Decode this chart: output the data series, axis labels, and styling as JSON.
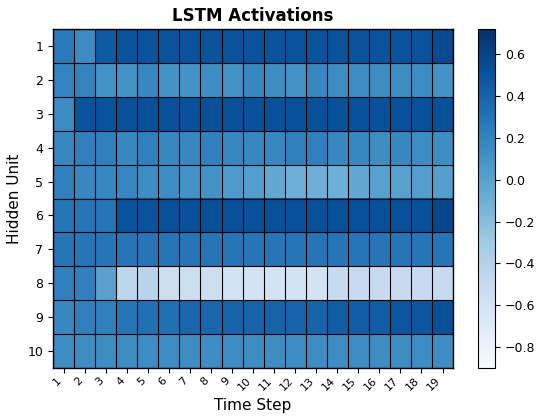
{
  "title": "LSTM Activations",
  "xlabel": "Time Step",
  "ylabel": "Hidden Unit",
  "n_rows": 10,
  "n_cols": 19,
  "vmin": -0.9,
  "vmax": 0.72,
  "colormap": "Blues",
  "cbar_ticks": [
    -0.8,
    -0.6,
    -0.4,
    -0.2,
    0.0,
    0.2,
    0.4,
    0.6
  ],
  "xtick_labels": [
    "1",
    "2",
    "3",
    "4",
    "5",
    "6",
    "7",
    "8",
    "9",
    "10",
    "11",
    "12",
    "13",
    "14",
    "15",
    "16",
    "17",
    "18",
    "19"
  ],
  "ytick_labels": [
    "1",
    "2",
    "3",
    "4",
    "5",
    "6",
    "7",
    "8",
    "9",
    "10"
  ],
  "data": [
    [
      0.25,
      0.15,
      0.45,
      0.5,
      0.5,
      0.5,
      0.5,
      0.5,
      0.5,
      0.5,
      0.5,
      0.5,
      0.5,
      0.5,
      0.5,
      0.5,
      0.5,
      0.5,
      0.55
    ],
    [
      0.2,
      0.2,
      0.1,
      0.1,
      0.18,
      0.1,
      0.1,
      0.14,
      0.1,
      0.18,
      0.14,
      0.1,
      0.18,
      0.14,
      0.14,
      0.14,
      0.14,
      0.14,
      0.1
    ],
    [
      0.15,
      0.5,
      0.5,
      0.52,
      0.52,
      0.52,
      0.52,
      0.52,
      0.52,
      0.52,
      0.52,
      0.52,
      0.52,
      0.52,
      0.52,
      0.52,
      0.52,
      0.52,
      0.52
    ],
    [
      0.18,
      0.22,
      0.22,
      0.18,
      0.22,
      0.18,
      0.18,
      0.22,
      0.18,
      0.18,
      0.18,
      0.22,
      0.22,
      0.18,
      0.18,
      0.14,
      0.18,
      0.14,
      0.14
    ],
    [
      0.22,
      0.18,
      0.18,
      0.18,
      0.14,
      0.14,
      0.1,
      0.1,
      0.05,
      0.02,
      -0.05,
      -0.1,
      -0.1,
      -0.1,
      -0.05,
      0.0,
      0.0,
      0.02,
      0.02
    ],
    [
      0.28,
      0.28,
      0.28,
      0.5,
      0.5,
      0.52,
      0.52,
      0.52,
      0.52,
      0.52,
      0.52,
      0.52,
      0.52,
      0.52,
      0.52,
      0.52,
      0.52,
      0.52,
      0.58
    ],
    [
      0.28,
      0.28,
      0.28,
      0.28,
      0.28,
      0.28,
      0.28,
      0.28,
      0.28,
      0.28,
      0.28,
      0.28,
      0.28,
      0.28,
      0.28,
      0.28,
      0.28,
      0.28,
      0.28
    ],
    [
      0.22,
      0.22,
      0.0,
      -0.45,
      -0.42,
      -0.55,
      -0.55,
      -0.55,
      -0.6,
      -0.6,
      -0.6,
      -0.6,
      -0.6,
      -0.5,
      -0.5,
      -0.5,
      -0.5,
      -0.5,
      -0.5
    ],
    [
      0.18,
      0.22,
      0.22,
      0.28,
      0.32,
      0.32,
      0.38,
      0.38,
      0.4,
      0.4,
      0.4,
      0.4,
      0.4,
      0.44,
      0.44,
      0.44,
      0.48,
      0.48,
      0.52
    ],
    [
      0.14,
      0.14,
      0.14,
      0.14,
      0.14,
      0.14,
      0.14,
      0.14,
      0.14,
      0.14,
      0.14,
      0.14,
      0.14,
      0.14,
      0.14,
      0.14,
      0.14,
      0.14,
      0.14
    ]
  ]
}
